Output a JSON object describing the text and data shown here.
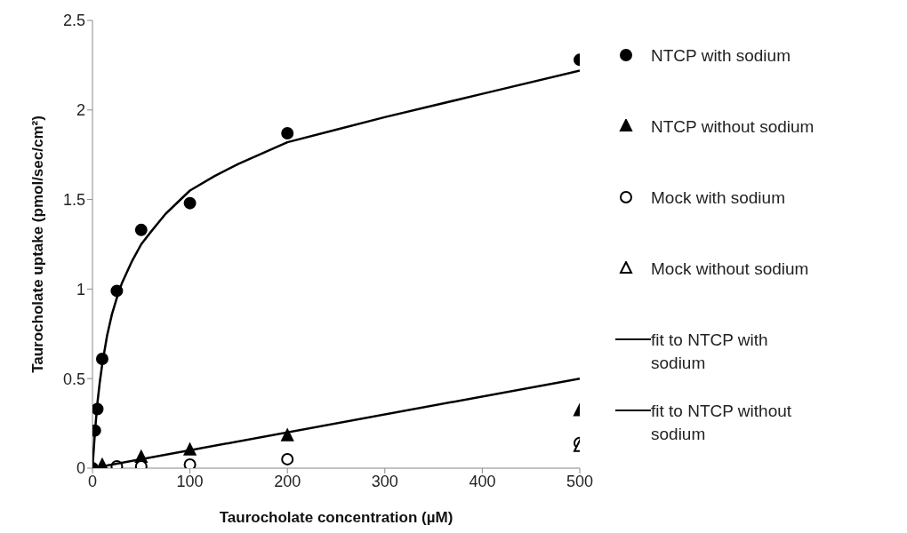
{
  "chart_data": {
    "type": "scatter",
    "xlabel": "Taurocholate concentration (µM)",
    "ylabel": "Taurocholate uptake (pmol/sec/cm²)",
    "xlim": [
      0,
      500
    ],
    "xticks": [
      0,
      100,
      200,
      300,
      400,
      500
    ],
    "ylim": [
      0,
      2.5
    ],
    "yticks": [
      0,
      0.5,
      1,
      1.5,
      2,
      2.5
    ],
    "grid": false,
    "legend": "right",
    "series": [
      {
        "name": "NTCP with sodium",
        "marker": "circle",
        "color": "#000000",
        "x": [
          0,
          2.5,
          5,
          10,
          25,
          50,
          100,
          200,
          500
        ],
        "values": [
          0,
          0.21,
          0.33,
          0.61,
          0.99,
          1.33,
          1.48,
          1.87,
          2.28
        ]
      },
      {
        "name": "NTCP without sodium",
        "marker": "triangle",
        "color": "#000000",
        "x": [
          10,
          25,
          50,
          100,
          200,
          500
        ],
        "values": [
          0.015,
          null,
          0.06,
          0.1,
          0.18,
          0.32
        ]
      },
      {
        "name": "Mock with sodium",
        "marker": "circle",
        "color": "#ffffff",
        "x": [
          25,
          50,
          100,
          200,
          500
        ],
        "values": [
          0.01,
          0.01,
          0.02,
          0.05,
          0.14
        ]
      },
      {
        "name": "Mock without sodium",
        "marker": "triangle",
        "color": "#ffffff",
        "x": [
          500
        ],
        "values": [
          0.12
        ]
      },
      {
        "name": "fit to NTCP with sodium",
        "type": "line",
        "color": "#000000",
        "x": [
          0,
          2.5,
          5,
          7.5,
          10,
          15,
          20,
          25,
          30,
          40,
          50,
          60,
          75,
          100,
          125,
          150,
          200,
          250,
          300,
          400,
          500
        ],
        "values": [
          0,
          0.2,
          0.36,
          0.48,
          0.58,
          0.74,
          0.86,
          0.95,
          1.03,
          1.15,
          1.25,
          1.32,
          1.42,
          1.55,
          1.63,
          1.7,
          1.82,
          1.89,
          1.96,
          2.09,
          2.22
        ]
      },
      {
        "name": "fit to NTCP without sodium",
        "type": "line",
        "color": "#000000",
        "x": [
          0,
          500
        ],
        "values": [
          0,
          0.5
        ]
      }
    ]
  }
}
